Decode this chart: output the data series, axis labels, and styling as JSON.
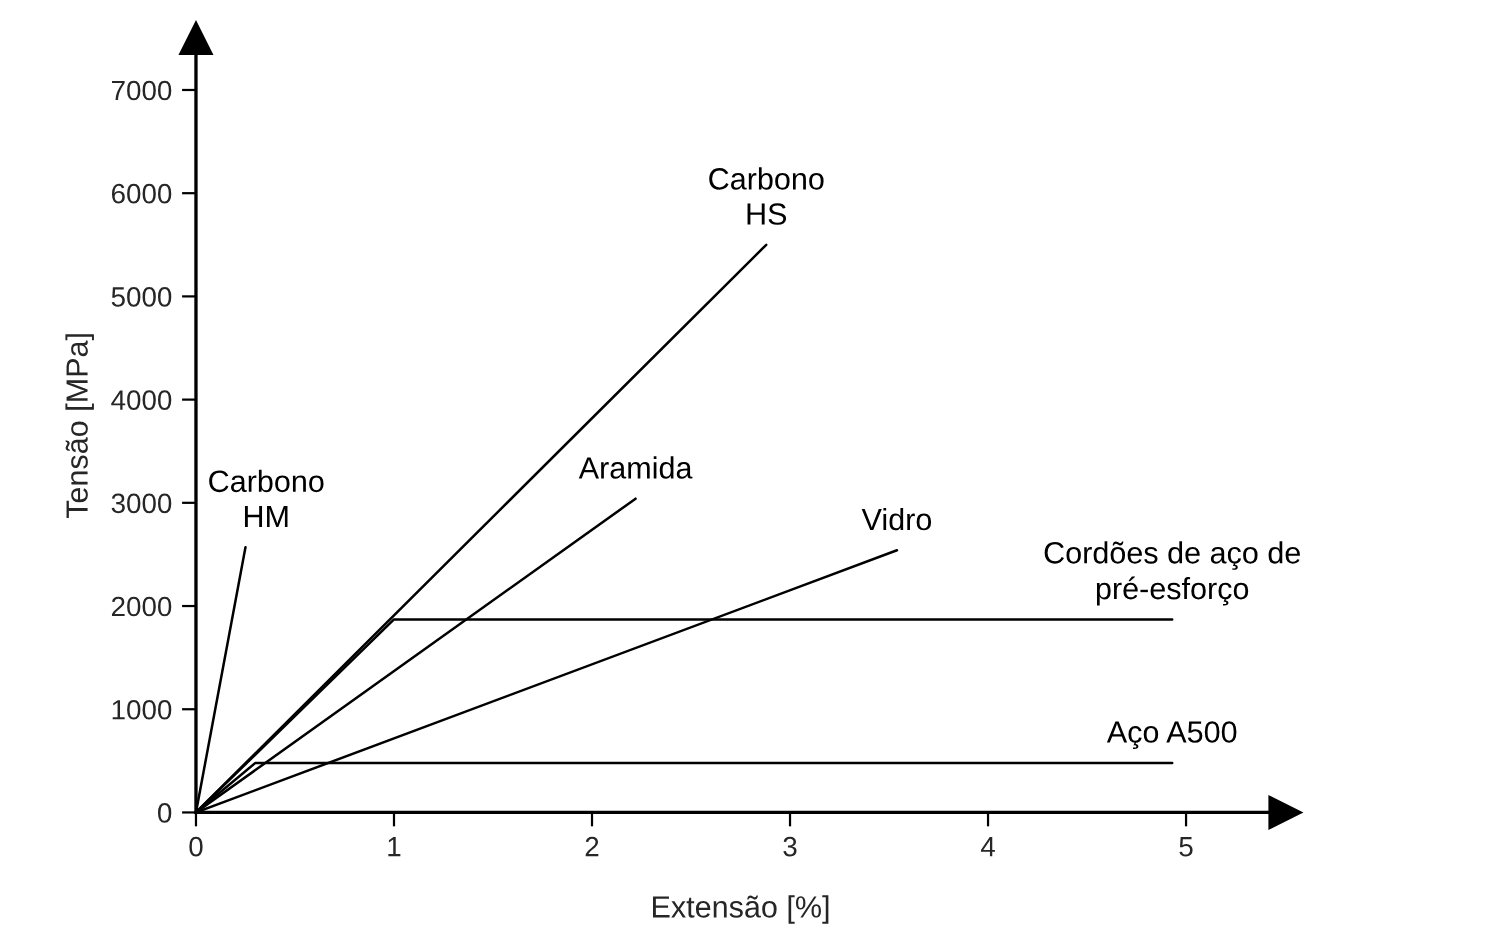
{
  "chart_data": {
    "type": "line",
    "xlabel": "Extensão [%]",
    "ylabel": "Tensão [MPa]",
    "series": [
      {
        "name": "Carbono\nHM",
        "color": "#000000",
        "x": [
          0,
          0.25
        ],
        "values": [
          0,
          2570
        ]
      },
      {
        "name": "Carbono\nHS",
        "color": "#000000",
        "x": [
          0,
          2.88
        ],
        "values": [
          0,
          5500
        ]
      },
      {
        "name": "Aramida",
        "color": "#000000",
        "x": [
          0,
          2.22
        ],
        "values": [
          0,
          3040
        ]
      },
      {
        "name": "Vidro",
        "color": "#000000",
        "x": [
          0,
          3.54
        ],
        "values": [
          0,
          2540
        ]
      },
      {
        "name": "Cordões de aço de\npré-esforço",
        "color": "#000000",
        "x": [
          0,
          1.0,
          4.93
        ],
        "values": [
          0,
          1870,
          1870
        ]
      },
      {
        "name": "Aço A500",
        "color": "#000000",
        "x": [
          0,
          0.3,
          4.93
        ],
        "values": [
          0,
          480,
          480
        ]
      }
    ],
    "xlim": [
      0,
      5.5
    ],
    "ylim": [
      0,
      7500
    ],
    "xticks": [
      0,
      1,
      2,
      3,
      4,
      5
    ],
    "yticks": [
      0,
      1000,
      2000,
      3000,
      4000,
      5000,
      6000,
      7000
    ],
    "grid": false,
    "legend": false,
    "marker": "none",
    "line_style": "solid"
  }
}
